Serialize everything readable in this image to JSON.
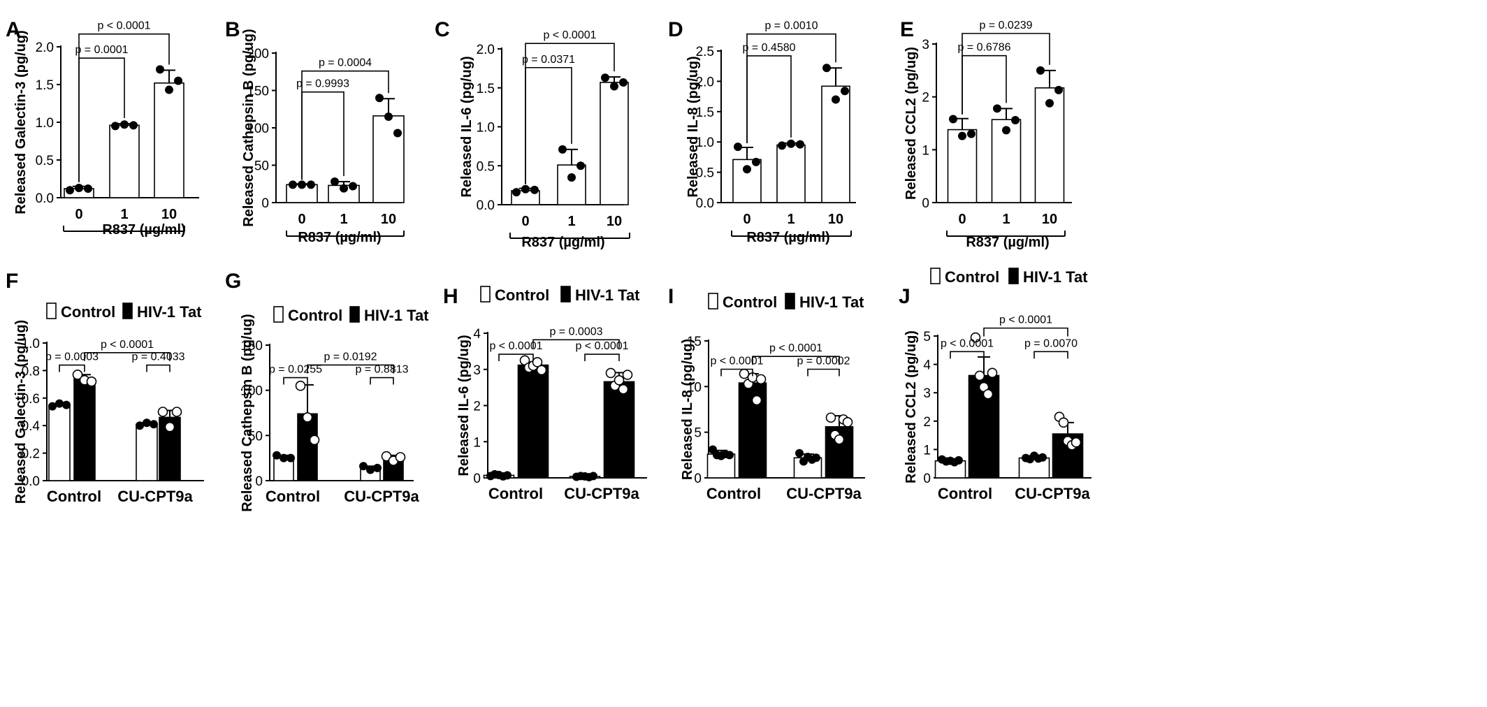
{
  "chart_data": [
    {
      "panel": "A",
      "type": "bar",
      "ylabel": "Released Galectin-3 (pg/ug)",
      "xlabel": "R837 (µg/ml)",
      "categories": [
        "0",
        "1",
        "10"
      ],
      "yticks": [
        "0.0",
        "0.5",
        "1.0",
        "1.5",
        "2.0"
      ],
      "ylim": [
        0,
        2.0
      ],
      "values": [
        0.12,
        0.96,
        1.52
      ],
      "errors": [
        0.03,
        0.02,
        0.17
      ],
      "points": [
        [
          0.1,
          0.13,
          0.12
        ],
        [
          0.95,
          0.97,
          0.96
        ],
        [
          1.7,
          1.43,
          1.55
        ]
      ],
      "comparisons": [
        {
          "a": 0,
          "b": 1,
          "label": "p = 0.0001",
          "y": 1.85
        },
        {
          "a": 0,
          "b": 2,
          "label": "p < 0.0001",
          "y": 2.17
        }
      ]
    },
    {
      "panel": "B",
      "type": "bar",
      "ylabel": "Released Cathepsin B (pg/ug)",
      "xlabel": "R837 (µg/ml)",
      "categories": [
        "0",
        "1",
        "10"
      ],
      "yticks": [
        "0",
        "50",
        "100",
        "150",
        "200"
      ],
      "ylim": [
        0,
        200
      ],
      "values": [
        24,
        23,
        116
      ],
      "errors": [
        1,
        5,
        23
      ],
      "points": [
        [
          24,
          24,
          24
        ],
        [
          28,
          19,
          22
        ],
        [
          140,
          115,
          93
        ]
      ],
      "comparisons": [
        {
          "a": 0,
          "b": 1,
          "label": "p = 0.9993",
          "y": 148
        },
        {
          "a": 0,
          "b": 2,
          "label": "p = 0.0004",
          "y": 176
        }
      ]
    },
    {
      "panel": "C",
      "type": "bar",
      "ylabel": "Released IL-6 (pg/ug)",
      "xlabel": "R837 (µg/ml)",
      "categories": [
        "0",
        "1",
        "10"
      ],
      "yticks": [
        "0.0",
        "0.5",
        "1.0",
        "1.5",
        "2.0"
      ],
      "ylim": [
        0,
        2.0
      ],
      "values": [
        0.18,
        0.51,
        1.57
      ],
      "errors": [
        0.03,
        0.2,
        0.07
      ],
      "points": [
        [
          0.16,
          0.2,
          0.19
        ],
        [
          0.71,
          0.35,
          0.5
        ],
        [
          1.63,
          1.52,
          1.57
        ]
      ],
      "comparisons": [
        {
          "a": 0,
          "b": 1,
          "label": "p = 0.0371",
          "y": 1.76
        },
        {
          "a": 0,
          "b": 2,
          "label": "p < 0.0001",
          "y": 2.07
        }
      ]
    },
    {
      "panel": "D",
      "type": "bar",
      "ylabel": "Released IL-8 (pg/ug)",
      "xlabel": "R837 (µg/ml)",
      "categories": [
        "0",
        "1",
        "10"
      ],
      "yticks": [
        "0.0",
        "0.5",
        "1.0",
        "1.5",
        "2.0",
        "2.5"
      ],
      "ylim": [
        0,
        2.5
      ],
      "values": [
        0.71,
        0.95,
        1.92
      ],
      "errors": [
        0.2,
        0.03,
        0.3
      ],
      "points": [
        [
          0.92,
          0.55,
          0.67
        ],
        [
          0.94,
          0.97,
          0.96
        ],
        [
          2.22,
          1.7,
          1.84
        ]
      ],
      "comparisons": [
        {
          "a": 0,
          "b": 1,
          "label": "p = 0.4580",
          "y": 2.42
        },
        {
          "a": 0,
          "b": 2,
          "label": "p = 0.0010",
          "y": 2.78
        }
      ]
    },
    {
      "panel": "E",
      "type": "bar",
      "ylabel": "Released CCL2 (pg/ug)",
      "xlabel": "R837 (µg/ml)",
      "categories": [
        "0",
        "1",
        "10"
      ],
      "yticks": [
        "0",
        "1",
        "2",
        "3"
      ],
      "ylim": [
        0,
        3
      ],
      "values": [
        1.38,
        1.57,
        2.17
      ],
      "errors": [
        0.21,
        0.21,
        0.33
      ],
      "points": [
        [
          1.58,
          1.26,
          1.3
        ],
        [
          1.78,
          1.37,
          1.56
        ],
        [
          2.5,
          1.88,
          2.13
        ]
      ],
      "comparisons": [
        {
          "a": 0,
          "b": 1,
          "label": "p = 0.6786",
          "y": 2.78
        },
        {
          "a": 0,
          "b": 2,
          "label": "p = 0.0239",
          "y": 3.2
        }
      ]
    },
    {
      "panel": "F",
      "type": "grouped-bar",
      "ylabel": "Released Galectin-3 (pg/ug)",
      "categories": [
        "Control",
        "CU-CPT9a"
      ],
      "legend": [
        "Control",
        "HIV-1 Tat"
      ],
      "yticks": [
        "0.0",
        "0.2",
        "0.4",
        "0.6",
        "0.8",
        "1.0"
      ],
      "ylim": [
        0,
        1.0
      ],
      "series": [
        {
          "name": "Control",
          "values": [
            0.55,
            0.41
          ],
          "errors": [
            0.01,
            0.01
          ],
          "points": [
            [
              0.54,
              0.56,
              0.55
            ],
            [
              0.4,
              0.42,
              0.41
            ]
          ]
        },
        {
          "name": "HIV-1 Tat",
          "values": [
            0.74,
            0.46
          ],
          "errors": [
            0.03,
            0.05
          ],
          "points": [
            [
              0.77,
              0.73,
              0.72
            ],
            [
              0.5,
              0.39,
              0.5
            ]
          ]
        }
      ],
      "comparisons": [
        {
          "a": [
            0,
            0
          ],
          "b": [
            0,
            1
          ],
          "label": "p = 0.0003",
          "y": 0.84
        },
        {
          "a": [
            1,
            0
          ],
          "b": [
            1,
            1
          ],
          "label": "p = 0.4033",
          "y": 0.84
        },
        {
          "a": [
            0,
            1
          ],
          "b": [
            1,
            1
          ],
          "label": "p < 0.0001",
          "y": 0.93
        }
      ]
    },
    {
      "panel": "G",
      "type": "grouped-bar",
      "ylabel": "Released Cathepsin B (pg/ug)",
      "categories": [
        "Control",
        "CU-CPT9a"
      ],
      "legend": [
        "Control",
        "HIV-1 Tat"
      ],
      "yticks": [
        "0",
        "50",
        "100",
        "150"
      ],
      "ylim": [
        0,
        150
      ],
      "series": [
        {
          "name": "Control",
          "values": [
            26,
            14
          ],
          "errors": [
            2,
            2
          ],
          "points": [
            [
              28,
              25,
              25
            ],
            [
              16,
              12,
              14
            ]
          ]
        },
        {
          "name": "HIV-1 Tat",
          "values": [
            74,
            25
          ],
          "errors": [
            32,
            3
          ],
          "points": [
            [
              105,
              70,
              45
            ],
            [
              27,
              22,
              26
            ]
          ]
        }
      ],
      "comparisons": [
        {
          "a": [
            0,
            0
          ],
          "b": [
            0,
            1
          ],
          "label": "p = 0.0255",
          "y": 114
        },
        {
          "a": [
            1,
            0
          ],
          "b": [
            1,
            1
          ],
          "label": "p = 0.8813",
          "y": 114
        },
        {
          "a": [
            0,
            1
          ],
          "b": [
            1,
            1
          ],
          "label": "p = 0.0192",
          "y": 128
        }
      ]
    },
    {
      "panel": "H",
      "type": "grouped-bar",
      "ylabel": "Released IL-6 (pg/ug)",
      "categories": [
        "Control",
        "CU-CPT9a"
      ],
      "legend": [
        "Control",
        "HIV-1 Tat"
      ],
      "yticks": [
        "0",
        "1",
        "2",
        "3",
        "4"
      ],
      "ylim": [
        0,
        4
      ],
      "series": [
        {
          "name": "Control",
          "values": [
            0.07,
            0.04
          ],
          "errors": [
            0.03,
            0.02
          ],
          "points": [
            [
              0.05,
              0.1,
              0.08,
              0.04,
              0.07
            ],
            [
              0.03,
              0.05,
              0.04,
              0.02,
              0.05
            ]
          ]
        },
        {
          "name": "HIV-1 Tat",
          "values": [
            3.12,
            2.66
          ],
          "errors": [
            0.08,
            0.25
          ],
          "points": [
            [
              3.25,
              3.05,
              3.1,
              3.2,
              2.98
            ],
            [
              2.9,
              2.55,
              2.7,
              2.45,
              2.85
            ]
          ]
        }
      ],
      "comparisons": [
        {
          "a": [
            0,
            0
          ],
          "b": [
            0,
            1
          ],
          "label": "p < 0.0001",
          "y": 3.42
        },
        {
          "a": [
            1,
            0
          ],
          "b": [
            1,
            1
          ],
          "label": "p < 0.0001",
          "y": 3.42
        },
        {
          "a": [
            0,
            1
          ],
          "b": [
            1,
            1
          ],
          "label": "p = 0.0003",
          "y": 3.82
        }
      ]
    },
    {
      "panel": "I",
      "type": "grouped-bar",
      "ylabel": "Released IL-8 (pg/ug)",
      "categories": [
        "Control",
        "CU-CPT9a"
      ],
      "legend": [
        "Control",
        "HIV-1 Tat"
      ],
      "yticks": [
        "0",
        "5",
        "10",
        "15"
      ],
      "ylim": [
        0,
        15
      ],
      "series": [
        {
          "name": "Control",
          "values": [
            2.6,
            2.2
          ],
          "errors": [
            0.4,
            0.4
          ],
          "points": [
            [
              3.1,
              2.5,
              2.4,
              2.6,
              2.5
            ],
            [
              2.7,
              1.8,
              2.3,
              2.0,
              2.2
            ]
          ]
        },
        {
          "name": "HIV-1 Tat",
          "values": [
            10.4,
            5.6
          ],
          "errors": [
            1.0,
            1.2
          ],
          "points": [
            [
              11.4,
              10.3,
              11.0,
              8.5,
              10.8
            ],
            [
              6.6,
              4.7,
              4.2,
              6.4,
              6.1
            ]
          ]
        }
      ],
      "comparisons": [
        {
          "a": [
            0,
            0
          ],
          "b": [
            0,
            1
          ],
          "label": "p < 0.0001",
          "y": 11.9
        },
        {
          "a": [
            1,
            0
          ],
          "b": [
            1,
            1
          ],
          "label": "p = 0.0002",
          "y": 11.9
        },
        {
          "a": [
            0,
            1
          ],
          "b": [
            1,
            1
          ],
          "label": "p < 0.0001",
          "y": 13.3
        }
      ]
    },
    {
      "panel": "J",
      "type": "grouped-bar",
      "ylabel": "Released CCL2 (pg/ug)",
      "categories": [
        "Control",
        "CU-CPT9a"
      ],
      "legend": [
        "Control",
        "HIV-1 Tat"
      ],
      "yticks": [
        "0",
        "1",
        "2",
        "3",
        "4",
        "5"
      ],
      "ylim": [
        0,
        5
      ],
      "series": [
        {
          "name": "Control",
          "values": [
            0.6,
            0.7
          ],
          "errors": [
            0.05,
            0.05
          ],
          "points": [
            [
              0.65,
              0.58,
              0.6,
              0.55,
              0.62
            ],
            [
              0.7,
              0.66,
              0.78,
              0.68,
              0.72
            ]
          ]
        },
        {
          "name": "HIV-1 Tat",
          "values": [
            3.61,
            1.55
          ],
          "errors": [
            0.65,
            0.4
          ],
          "points": [
            [
              4.95,
              3.6,
              3.2,
              2.95,
              3.7
            ],
            [
              2.15,
              1.95,
              1.3,
              1.15,
              1.25
            ]
          ]
        }
      ],
      "comparisons": [
        {
          "a": [
            0,
            0
          ],
          "b": [
            0,
            1
          ],
          "label": "p < 0.0001",
          "y": 4.45
        },
        {
          "a": [
            1,
            0
          ],
          "b": [
            1,
            1
          ],
          "label": "p = 0.0070",
          "y": 4.45
        },
        {
          "a": [
            0,
            1
          ],
          "b": [
            1,
            1
          ],
          "label": "p < 0.0001",
          "y": 5.28
        }
      ]
    }
  ]
}
